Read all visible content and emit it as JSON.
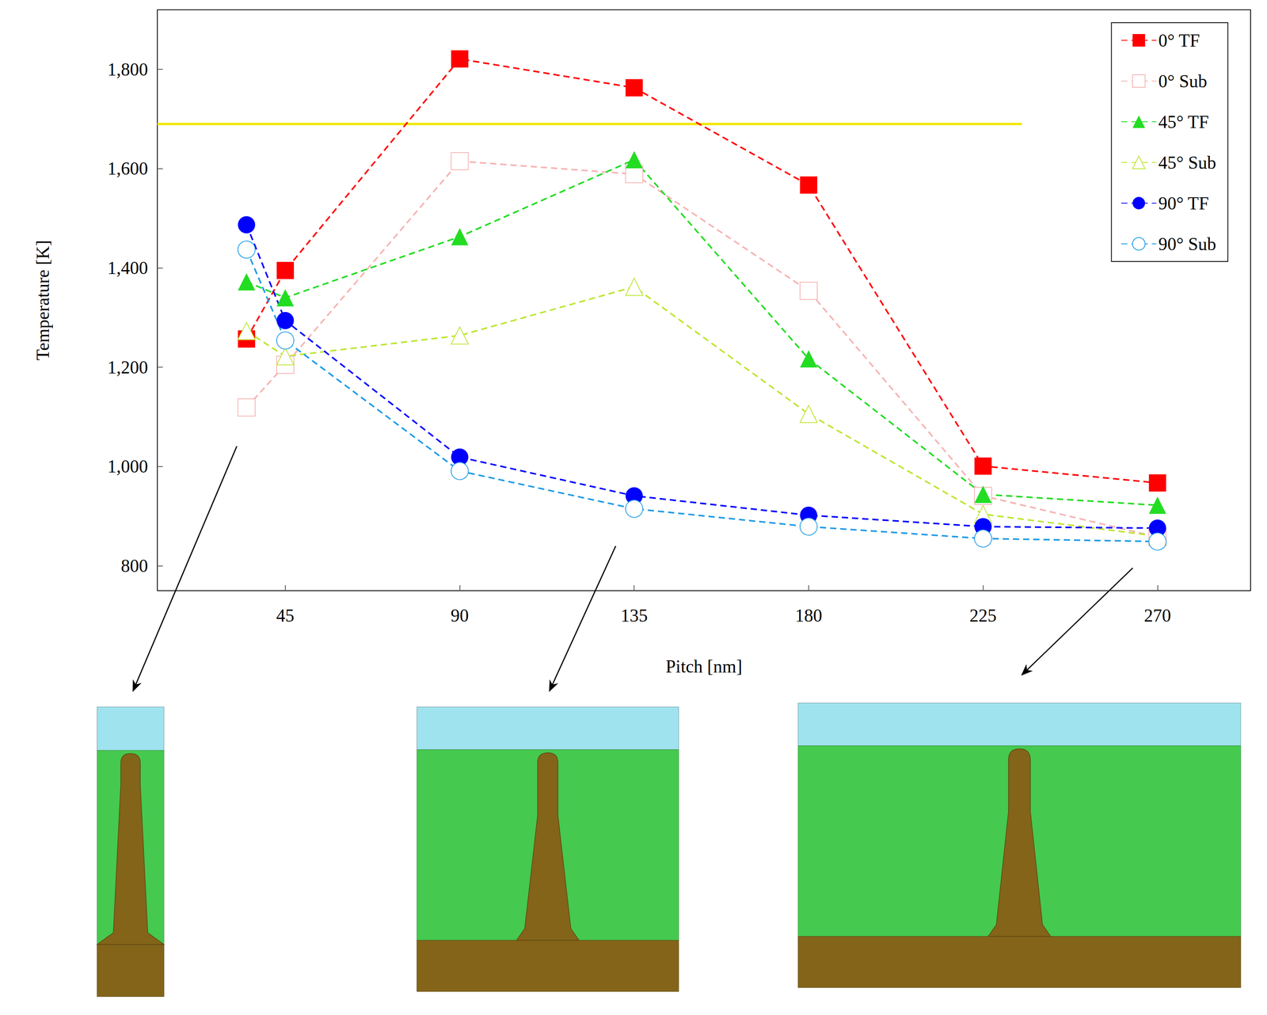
{
  "chart_data": {
    "type": "line",
    "x_label": "Pitch [nm]",
    "y_label": "Temperature [K]",
    "x": [
      35,
      45,
      90,
      135,
      180,
      225,
      270
    ],
    "xlim": [
      12,
      294
    ],
    "xticks": [
      45,
      90,
      135,
      180,
      225,
      270
    ],
    "ylim": [
      750,
      1920
    ],
    "yticks": [
      800,
      1000,
      1200,
      1400,
      1600,
      1800
    ],
    "grid": false,
    "legend": "top-right",
    "reference_line": {
      "y": 1690,
      "x": [
        12,
        235
      ],
      "color": "#f2e600"
    },
    "series": [
      {
        "name": "0° TF",
        "color": "#ff0000",
        "marker": "square",
        "line_style": "dashed",
        "values": [
          1257,
          1395,
          1821,
          1763,
          1567,
          1001,
          967
        ]
      },
      {
        "name": "0° Sub",
        "color": "#f7b3b3",
        "marker": "square-open",
        "line_style": "dashed",
        "values": [
          1119,
          1205,
          1615,
          1589,
          1354,
          941,
          858
        ]
      },
      {
        "name": "45° TF",
        "color": "#22dd22",
        "marker": "triangle",
        "line_style": "dashed",
        "values": [
          1372,
          1340,
          1463,
          1618,
          1217,
          944,
          922
        ]
      },
      {
        "name": "45° Sub",
        "color": "#bde632",
        "marker": "triangle-open",
        "line_style": "dashed",
        "values": [
          1273,
          1222,
          1264,
          1362,
          1106,
          904,
          860
        ]
      },
      {
        "name": "90° TF",
        "color": "#0000ff",
        "marker": "circle",
        "line_style": "dashed",
        "values": [
          1487,
          1294,
          1019,
          941,
          902,
          879,
          876
        ]
      },
      {
        "name": "90° Sub",
        "color": "#1f9be6",
        "marker": "circle-open",
        "line_style": "dashed",
        "values": [
          1437,
          1254,
          991,
          915,
          879,
          855,
          849
        ]
      }
    ]
  }
}
